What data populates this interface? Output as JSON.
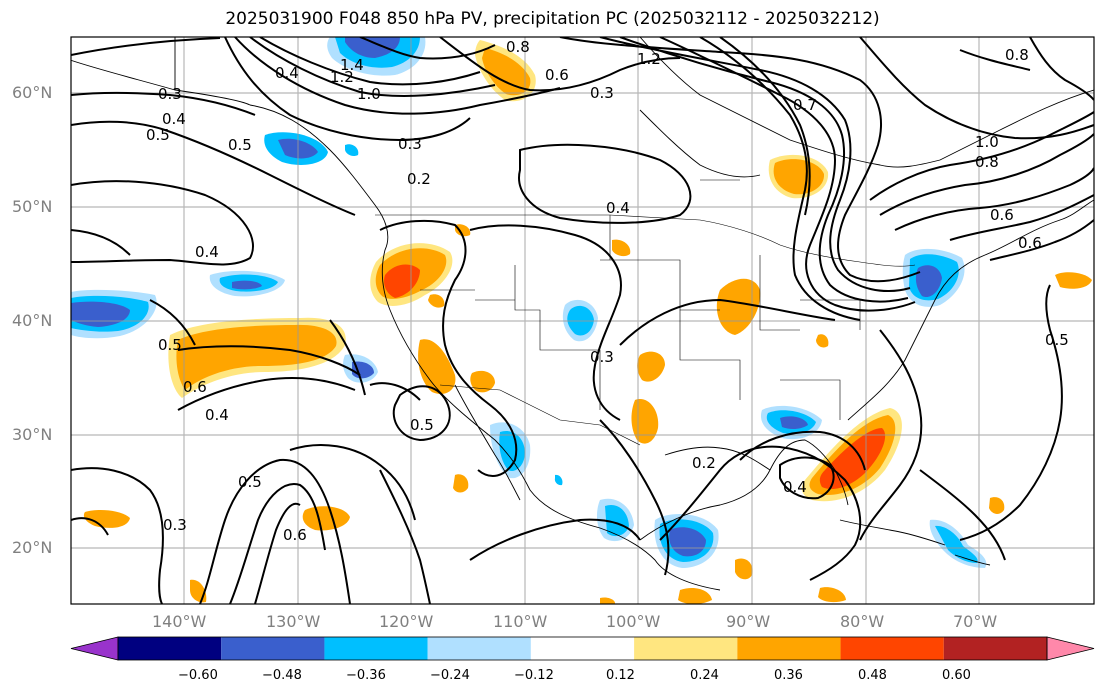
{
  "title": "2025031900 F048 850 hPa PV, precipitation PC (2025032112 - 2025032212)",
  "lat_labels": [
    "60°N",
    "50°N",
    "40°N",
    "30°N",
    "20°N"
  ],
  "lon_labels": [
    "140°W",
    "130°W",
    "120°W",
    "110°W",
    "100°W",
    "90°W",
    "80°W",
    "70°W"
  ],
  "contour_labels": [
    "0.3",
    "0.4",
    "0.5",
    "0.5",
    "0.4",
    "0.4",
    "0.2",
    "0.3",
    "1.4",
    "1.2",
    "1.0",
    "0.8",
    "0.6",
    "0.3",
    "1.2",
    "0.7",
    "0.8",
    "1.0",
    "0.8",
    "0.6",
    "0.6",
    "0.4",
    "0.5",
    "0.6",
    "0.4",
    "0.5",
    "0.5",
    "0.3",
    "0.2",
    "0.4",
    "0.5",
    "0.3",
    "0.6"
  ],
  "colorbar": {
    "ticks": [
      "−0.60",
      "−0.48",
      "−0.36",
      "−0.24",
      "−0.12",
      "0.12",
      "0.24",
      "0.36",
      "0.48",
      "0.60"
    ],
    "colors": [
      "#9933cc",
      "#000080",
      "#3a5fcd",
      "#00bfff",
      "#b0e0ff",
      "#ffffff",
      "#ffe680",
      "#ffa500",
      "#ff4500",
      "#b22222",
      "#ff88aa"
    ]
  }
}
